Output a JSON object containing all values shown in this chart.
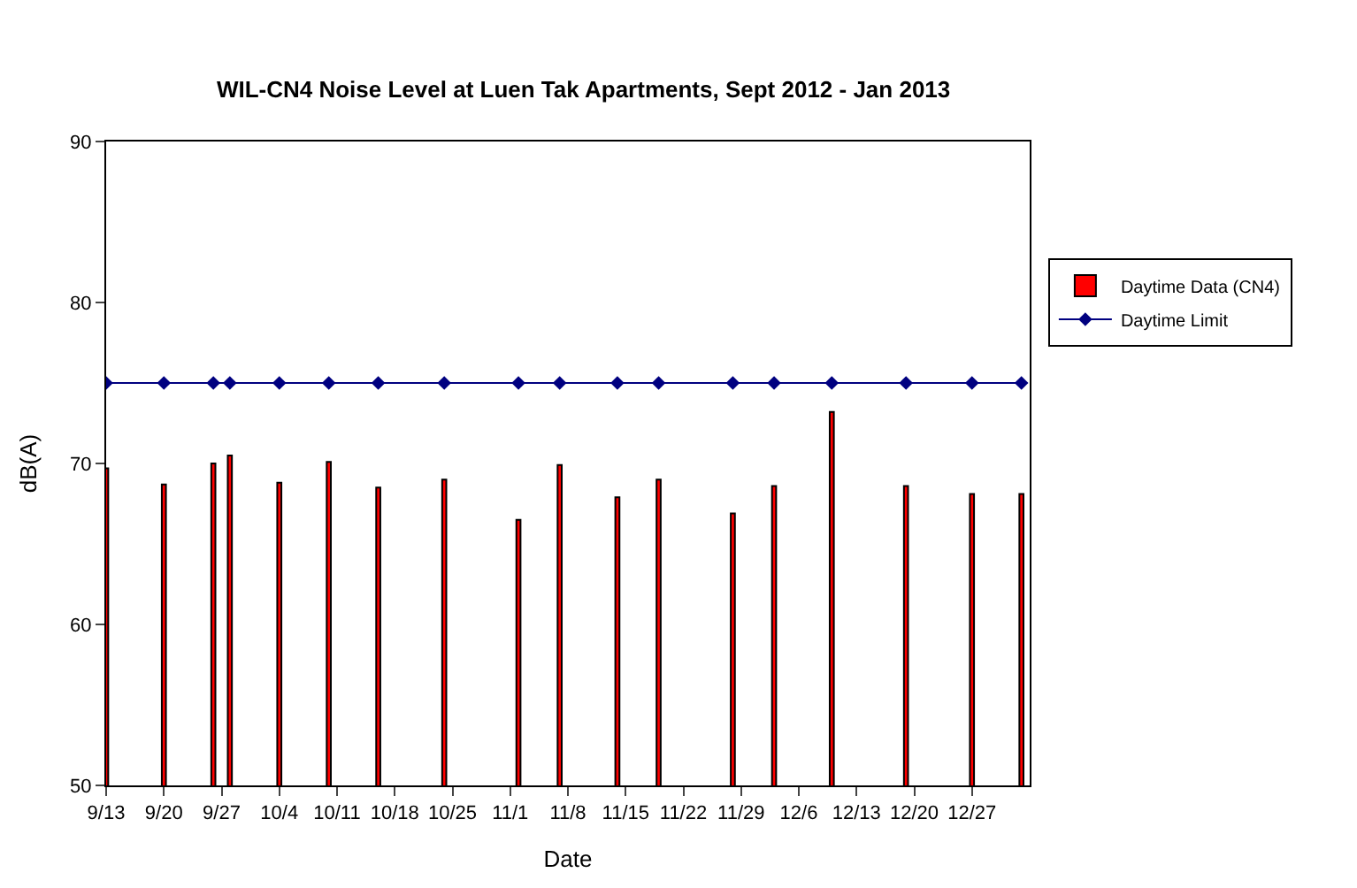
{
  "chart_data": {
    "type": "bar",
    "title": "WIL-CN4 Noise Level at Luen Tak Apartments, Sept 2012 - Jan 2013",
    "xlabel": "Date",
    "ylabel": "dB(A)",
    "x": [
      "2012-09-13",
      "2012-09-20",
      "2012-09-26",
      "2012-09-28",
      "2012-10-04",
      "2012-10-10",
      "2012-10-16",
      "2012-10-24",
      "2012-11-02",
      "2012-11-07",
      "2012-11-14",
      "2012-11-19",
      "2012-11-28",
      "2012-12-03",
      "2012-12-10",
      "2012-12-19",
      "2012-12-27",
      "2013-01-02"
    ],
    "series": [
      {
        "name": "Daytime Data (CN4)",
        "color": "#ff0000",
        "values": [
          69.7,
          68.7,
          70.0,
          70.5,
          68.8,
          70.1,
          68.5,
          69.0,
          66.5,
          69.9,
          67.9,
          69.0,
          66.9,
          68.6,
          73.2,
          68.6,
          68.1,
          68.1
        ]
      },
      {
        "name": "Daytime Limit",
        "type": "line",
        "color": "#000080",
        "marker": "diamond",
        "values": [
          75,
          75,
          75,
          75,
          75,
          75,
          75,
          75,
          75,
          75,
          75,
          75,
          75,
          75,
          75,
          75,
          75,
          75
        ]
      }
    ],
    "xlim": [
      "2012-09-13",
      "2013-01-03"
    ],
    "xticks": [
      {
        "value": "2012-09-13",
        "label": "9/13"
      },
      {
        "value": "2012-09-20",
        "label": "9/20"
      },
      {
        "value": "2012-09-27",
        "label": "9/27"
      },
      {
        "value": "2012-10-04",
        "label": "10/4"
      },
      {
        "value": "2012-10-11",
        "label": "10/11"
      },
      {
        "value": "2012-10-18",
        "label": "10/18"
      },
      {
        "value": "2012-10-25",
        "label": "10/25"
      },
      {
        "value": "2012-11-01",
        "label": "11/1"
      },
      {
        "value": "2012-11-08",
        "label": "11/8"
      },
      {
        "value": "2012-11-15",
        "label": "11/15"
      },
      {
        "value": "2012-11-22",
        "label": "11/22"
      },
      {
        "value": "2012-11-29",
        "label": "11/29"
      },
      {
        "value": "2012-12-06",
        "label": "12/6"
      },
      {
        "value": "2012-12-13",
        "label": "12/13"
      },
      {
        "value": "2012-12-20",
        "label": "12/20"
      },
      {
        "value": "2012-12-27",
        "label": "12/27"
      }
    ],
    "ylim": [
      50,
      90
    ],
    "yticks": [
      50,
      60,
      70,
      80,
      90
    ],
    "legend": "right"
  }
}
